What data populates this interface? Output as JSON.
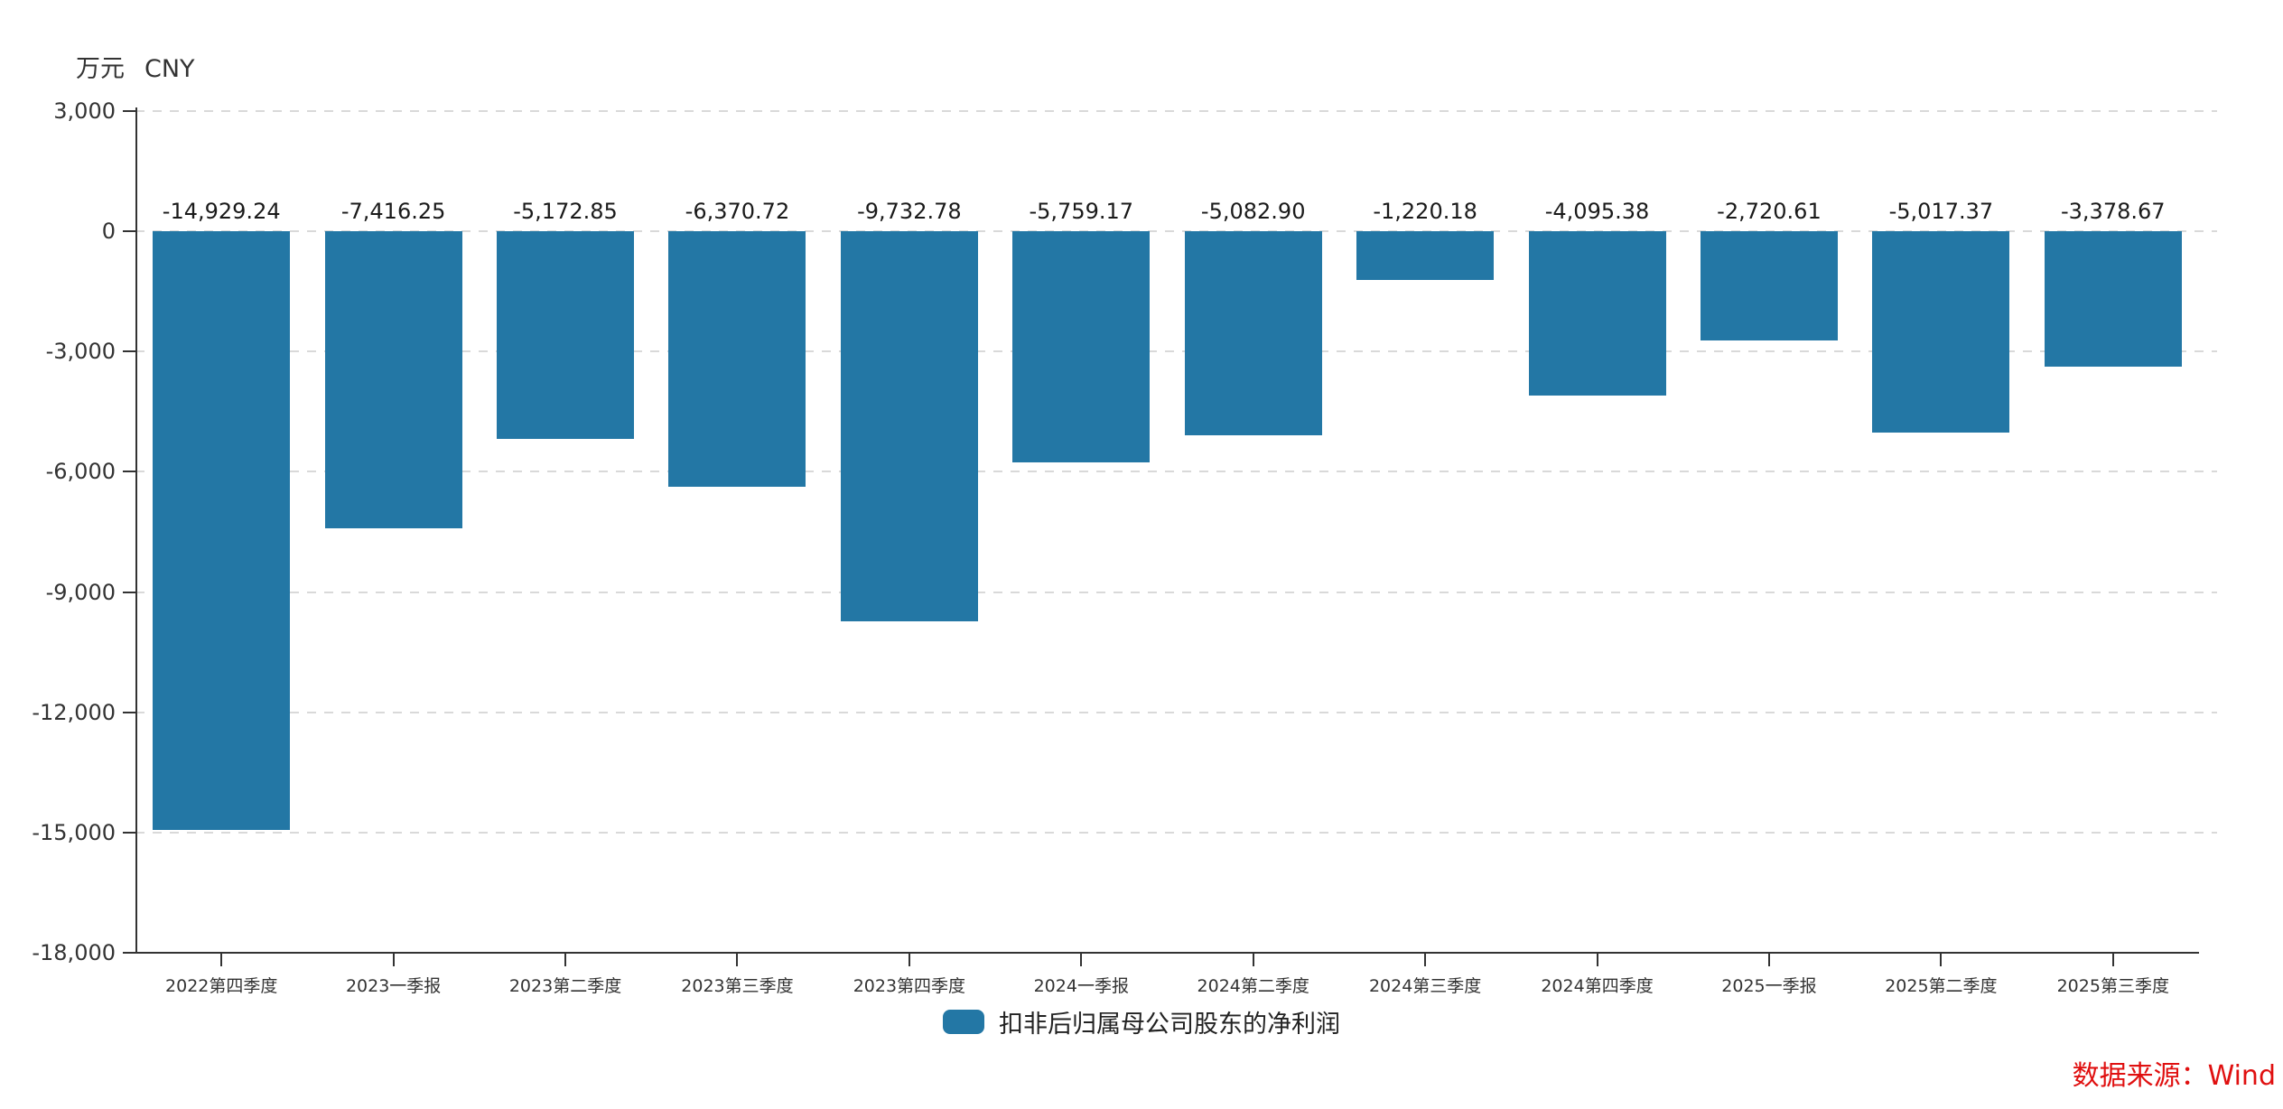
{
  "y_axis": {
    "unit_cn": "万元",
    "unit_en": "CNY"
  },
  "legend": {
    "label": "扣非后归属母公司股东的净利润"
  },
  "source_label": "数据来源：Wind",
  "colors": {
    "bar": "#2377a5",
    "axis": "#333333",
    "grid": "#d9d9d9",
    "source_text": "#e01010"
  },
  "chart_data": {
    "type": "bar",
    "title": "",
    "ylabel": "万元 CNY",
    "xlabel": "",
    "grid": true,
    "legend_position": "bottom",
    "ylim": [
      -18000,
      3000
    ],
    "yticks": [
      {
        "value": 3000,
        "label": "3,000"
      },
      {
        "value": 0,
        "label": "0"
      },
      {
        "value": -3000,
        "label": "-3,000"
      },
      {
        "value": -6000,
        "label": "-6,000"
      },
      {
        "value": -9000,
        "label": "-9,000"
      },
      {
        "value": -12000,
        "label": "-12,000"
      },
      {
        "value": -15000,
        "label": "-15,000"
      },
      {
        "value": -18000,
        "label": "-18,000"
      }
    ],
    "categories": [
      "2022第四季度",
      "2023一季报",
      "2023第二季度",
      "2023第三季度",
      "2023第四季度",
      "2024一季报",
      "2024第二季度",
      "2024第三季度",
      "2024第四季度",
      "2025一季报",
      "2025第二季度",
      "2025第三季度"
    ],
    "series": [
      {
        "name": "扣非后归属母公司股东的净利润",
        "values": [
          -14929.24,
          -7416.25,
          -5172.85,
          -6370.72,
          -9732.78,
          -5759.17,
          -5082.9,
          -1220.18,
          -4095.38,
          -2720.61,
          -5017.37,
          -3378.67
        ],
        "value_labels": [
          "-14,929.24",
          "-7,416.25",
          "-5,172.85",
          "-6,370.72",
          "-9,732.78",
          "-5,759.17",
          "-5,082.90",
          "-1,220.18",
          "-4,095.38",
          "-2,720.61",
          "-5,017.37",
          "-3,378.67"
        ]
      }
    ]
  }
}
